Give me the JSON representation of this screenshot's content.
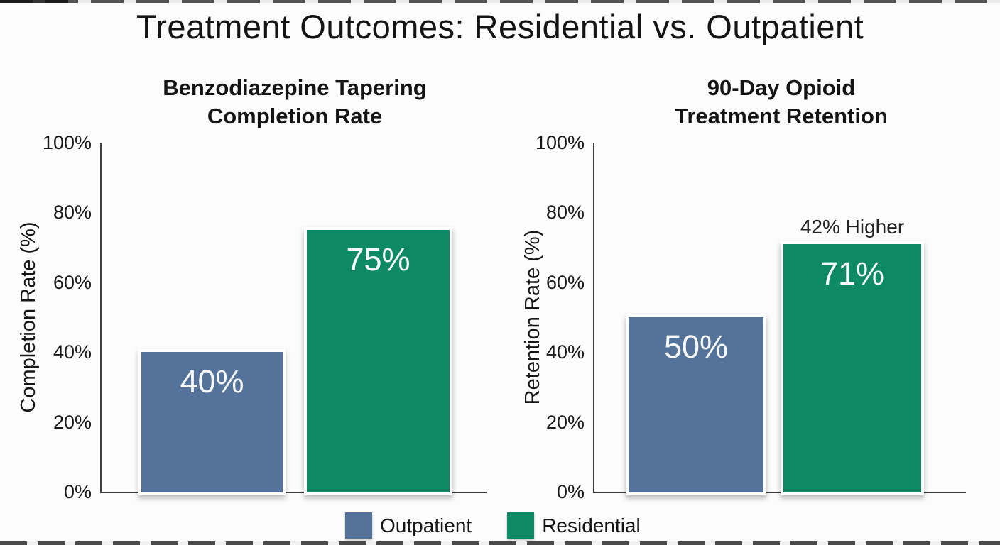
{
  "page": {
    "title": "Treatment Outcomes: Residential vs. Outpatient",
    "background": "#fcfcfc"
  },
  "colors": {
    "outpatient": "#55739a",
    "residential": "#0d8a64",
    "text": "#1b1b1b",
    "axis": "#3d3d3d",
    "bar_label": "#f7f9fa"
  },
  "legend": {
    "position": "bottom-center",
    "items": [
      {
        "label": "Outpatient",
        "color": "#55739a"
      },
      {
        "label": "Residential",
        "color": "#0d8a64"
      }
    ]
  },
  "chart_data": [
    {
      "type": "bar",
      "title": "Benzodiazepine Tapering\nCompletion Rate",
      "ylabel": "Completion Rate (%)",
      "xlabel": "",
      "categories": [
        "Outpatient",
        "Residential"
      ],
      "values": [
        40,
        75
      ],
      "bar_labels": [
        "40%",
        "75%"
      ],
      "series_colors": [
        "#55739a",
        "#0d8a64"
      ],
      "ytick_labels": [
        "100%",
        "80%",
        "60%",
        "40%",
        "20%",
        "0%"
      ],
      "ylim": [
        0,
        100
      ],
      "grid": false,
      "legend_position": "none",
      "annotation": ""
    },
    {
      "type": "bar",
      "title": "90-Day Opioid\nTreatment Retention",
      "ylabel": "Retention Rate (%)",
      "xlabel": "",
      "categories": [
        "Outpatient",
        "Residential"
      ],
      "values": [
        50,
        71
      ],
      "bar_labels": [
        "50%",
        "71%"
      ],
      "series_colors": [
        "#55739a",
        "#0d8a64"
      ],
      "ytick_labels": [
        "100%",
        "80%",
        "60%",
        "40%",
        "20%",
        "0%"
      ],
      "ylim": [
        0,
        100
      ],
      "grid": false,
      "legend_position": "none",
      "annotation": "42% Higher"
    }
  ]
}
